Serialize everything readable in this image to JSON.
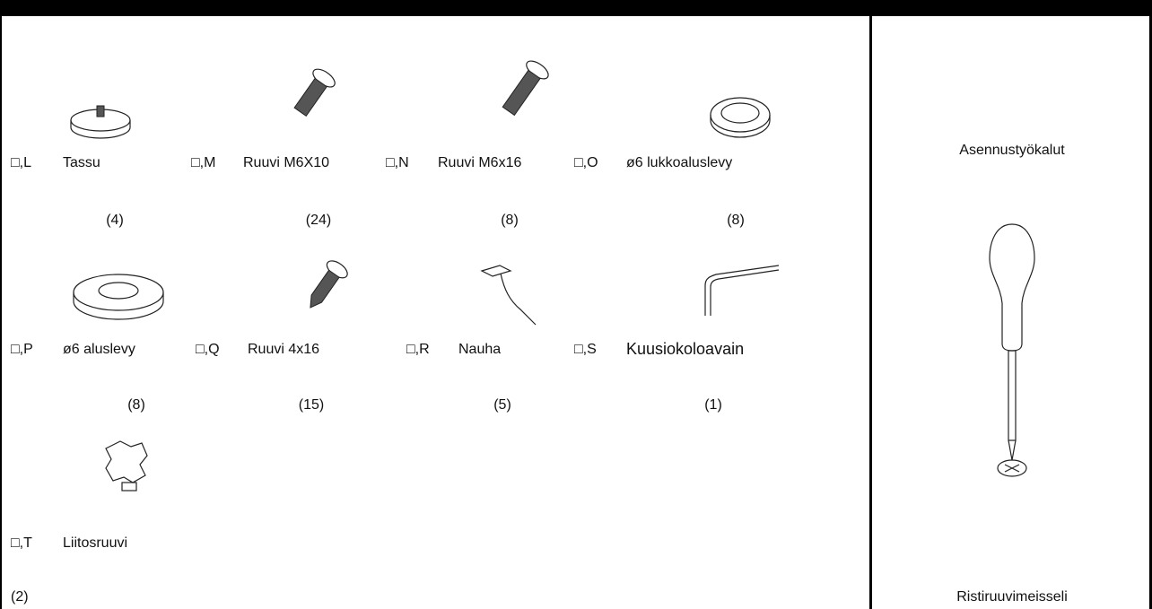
{
  "parts": [
    {
      "code": "□,L",
      "name": "Tassu",
      "count": "(4)"
    },
    {
      "code": "□,M",
      "name": "Ruuvi M6X10",
      "count": "(24)"
    },
    {
      "code": "□,N",
      "name": "Ruuvi M6x16",
      "count": "(8)"
    },
    {
      "code": "□,O",
      "name": "ø6 lukkoaluslevy",
      "count": "(8)"
    },
    {
      "code": "□,P",
      "name": "ø6 aluslevy",
      "count": "(8)"
    },
    {
      "code": "□,Q",
      "name": "Ruuvi 4x16",
      "count": "(15)"
    },
    {
      "code": "□,R",
      "name": "Nauha",
      "count": "(5)"
    },
    {
      "code": "□,S",
      "name": "Kuusiokoloavain",
      "count": "(1)"
    },
    {
      "code": "□,T",
      "name": "Liitosruuvi",
      "count": "(2)"
    }
  ],
  "tools": {
    "title": "Asennustyökalut",
    "name": "Ristiruuvimeisseli"
  }
}
